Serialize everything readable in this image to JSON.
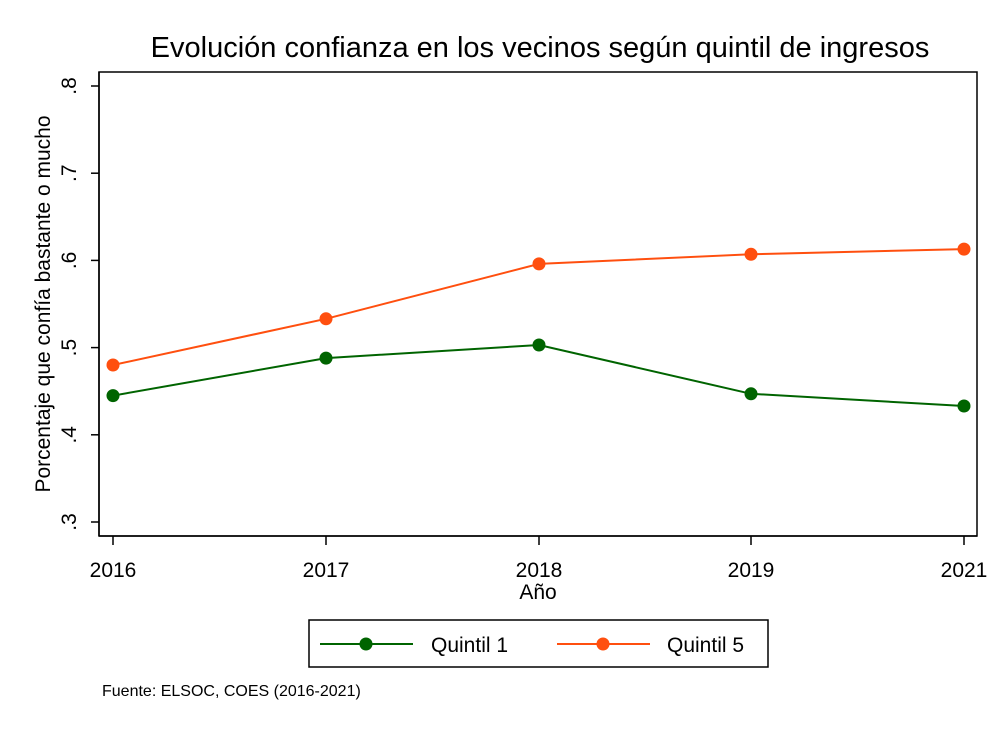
{
  "chart_data": {
    "type": "line",
    "title": "Evolución confianza en los vecinos según quintil de ingresos",
    "xlabel": "Año",
    "ylabel": "Porcentaje que confía bastante o mucho",
    "x": [
      "2016",
      "2017",
      "2018",
      "2019",
      "2021"
    ],
    "ylim": [
      0.3,
      0.8
    ],
    "yticks": [
      ".3",
      ".4",
      ".5",
      ".6",
      ".7",
      ".8"
    ],
    "grid": false,
    "legend_position": "bottom",
    "series": [
      {
        "name": "Quintil 1",
        "color": "#006400",
        "values": [
          0.445,
          0.488,
          0.503,
          0.447,
          0.433
        ]
      },
      {
        "name": "Quintil 5",
        "color": "#ff4f0f",
        "values": [
          0.48,
          0.533,
          0.596,
          0.607,
          0.613
        ]
      }
    ],
    "note": "Fuente: ELSOC, COES (2016-2021)"
  }
}
